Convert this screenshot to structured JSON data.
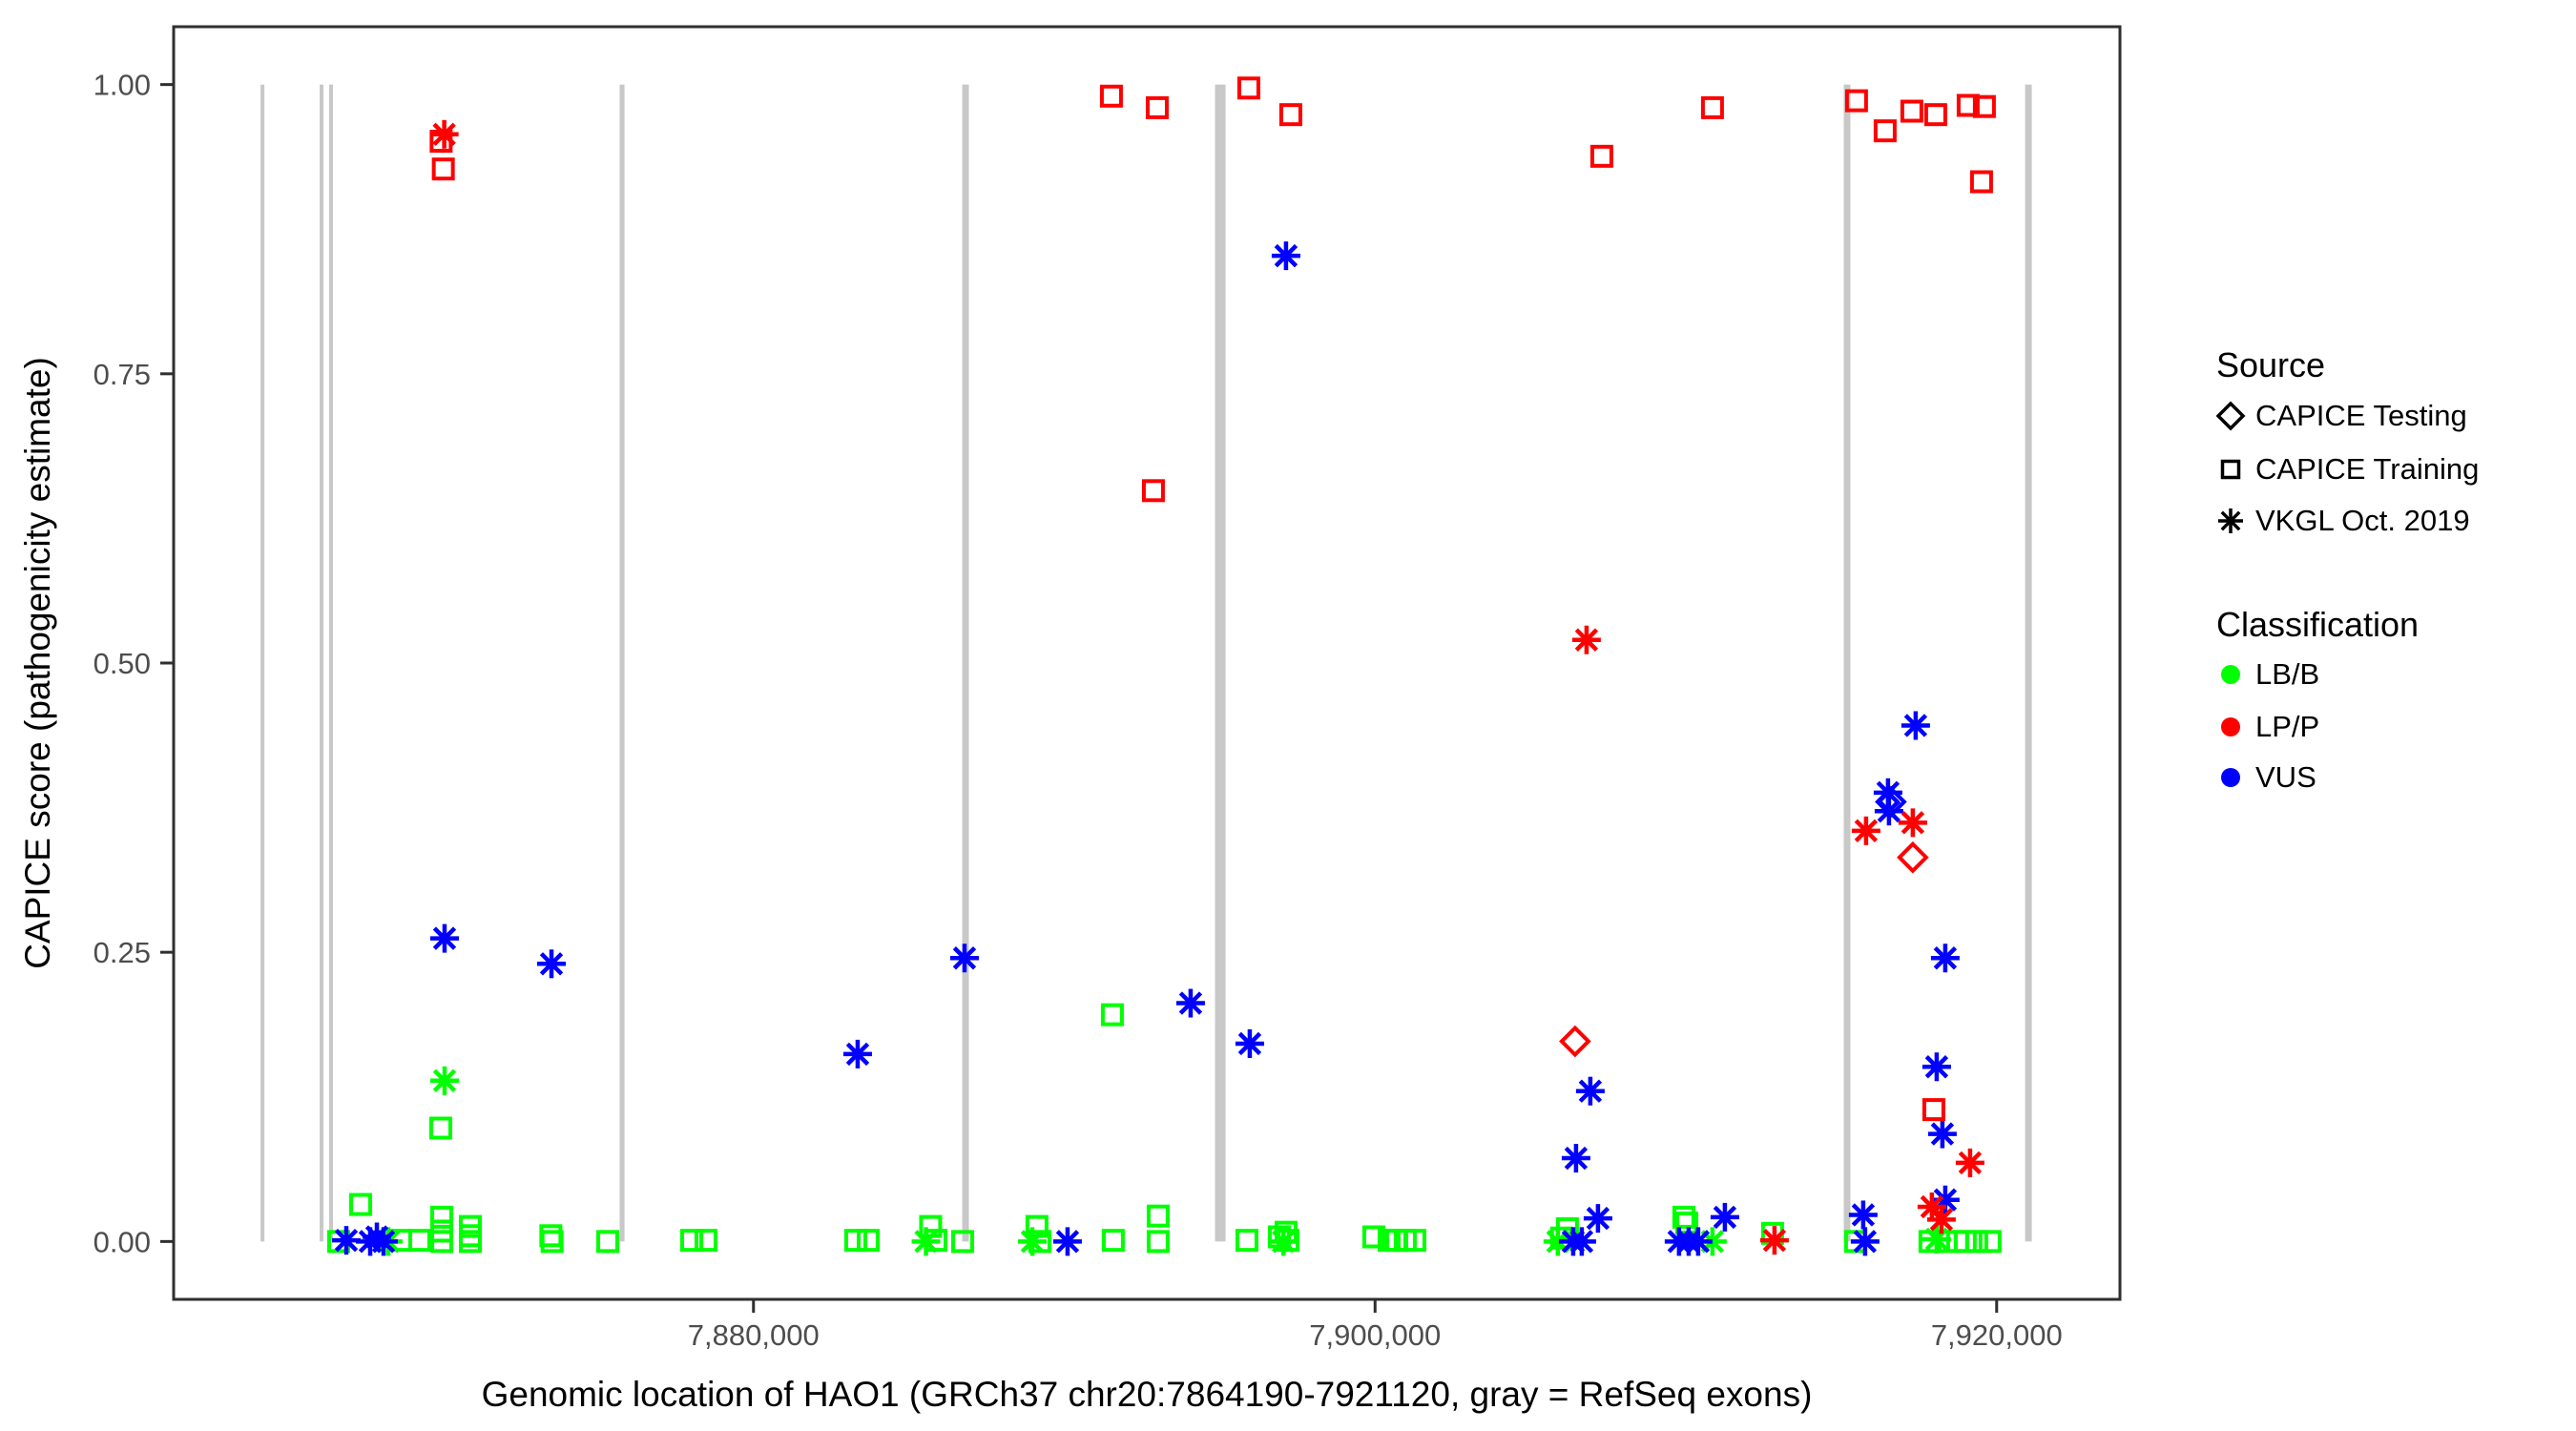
{
  "figure": {
    "x_axis": {
      "title": "Genomic location of HAO1 (GRCh37 chr20:7864190-7921120, gray = RefSeq exons)",
      "tick_labels": [
        "7,880,000",
        "7,900,000",
        "7,920,000"
      ],
      "tick_values": [
        7880000,
        7900000,
        7920000
      ]
    },
    "y_axis": {
      "title": "CAPICE score (pathogenicity estimate)",
      "tick_labels": [
        "0.00",
        "0.25",
        "0.50",
        "0.75",
        "1.00"
      ],
      "tick_values": [
        0,
        0.25,
        0.5,
        0.75,
        1.0
      ]
    },
    "legend": {
      "source_title": "Source",
      "source_items": [
        {
          "label": "CAPICE Testing",
          "marker": "diamond"
        },
        {
          "label": "CAPICE Training",
          "marker": "square"
        },
        {
          "label": "VKGL Oct. 2019",
          "marker": "asterisk"
        }
      ],
      "classification_title": "Classification",
      "classification_items": [
        {
          "label": "LB/B",
          "color": "#00FF00"
        },
        {
          "label": "LP/P",
          "color": "#FF0000"
        },
        {
          "label": "VUS",
          "color": "#0000FF"
        }
      ]
    }
  },
  "chart_data": {
    "type": "scatter",
    "xlabel": "Genomic location of HAO1 (GRCh37 chr20:7864190-7921120, gray = RefSeq exons)",
    "ylabel": "CAPICE score (pathogenicity estimate)",
    "x_domain": [
      7861343,
      7923967
    ],
    "y_domain": [
      -0.05,
      1.05
    ],
    "grid": false,
    "legend_position": "right",
    "class_colors": {
      "LB/B": "#00FF00",
      "LP/P": "#FF0000",
      "VUS": "#0000FF"
    },
    "source_markers": {
      "CAPICE Testing": "diamond",
      "CAPICE Training": "square",
      "VKGL Oct. 2019": "asterisk"
    },
    "style": {
      "exon_color": "#C8C8C8",
      "frame_color": "#2F2F2F",
      "tick_text_color": "#4D4D4D",
      "background": "#FFFFFF"
    },
    "point_codes": {
      "sources": {
        "T": "CAPICE Training",
        "X": "CAPICE Testing",
        "V": "VKGL Oct. 2019"
      },
      "classes": {
        "B": "LB/B",
        "P": "LP/P",
        "U": "VUS"
      }
    },
    "exons": [
      [
        7864140,
        7864263
      ],
      [
        7866040,
        7866165
      ],
      [
        7866347,
        7866470
      ],
      [
        7875695,
        7875850
      ],
      [
        7886715,
        7886930
      ],
      [
        7894850,
        7895190
      ],
      [
        7915080,
        7915295
      ],
      [
        7920915,
        7921130
      ]
    ],
    "points": [
      [
        7866654,
        0.0,
        "T",
        "B"
      ],
      [
        7866899,
        0.001,
        "V",
        "U"
      ],
      [
        7867360,
        0.032,
        "T",
        "B"
      ],
      [
        7867667,
        0.0,
        "V",
        "U"
      ],
      [
        7867882,
        0.004,
        "V",
        "U"
      ],
      [
        7868097,
        0.0,
        "V",
        "U"
      ],
      [
        7868250,
        0.0,
        "V",
        "B"
      ],
      [
        7868649,
        0.001,
        "T",
        "B"
      ],
      [
        7869263,
        0.001,
        "T",
        "B"
      ],
      [
        7869938,
        0.098,
        "T",
        "B"
      ],
      [
        7869950,
        0.951,
        "T",
        "P"
      ],
      [
        7869969,
        0.021,
        "T",
        "B"
      ],
      [
        7869969,
        0.009,
        "T",
        "B"
      ],
      [
        7869969,
        0.0,
        "T",
        "B"
      ],
      [
        7870020,
        0.927,
        "T",
        "P"
      ],
      [
        7870050,
        0.957,
        "V",
        "P"
      ],
      [
        7870061,
        0.139,
        "V",
        "B"
      ],
      [
        7870060,
        0.262,
        "V",
        "U"
      ],
      [
        7870890,
        0.013,
        "T",
        "B"
      ],
      [
        7870890,
        0.005,
        "T",
        "B"
      ],
      [
        7870890,
        0.0,
        "T",
        "B"
      ],
      [
        7873480,
        0.005,
        "T",
        "B"
      ],
      [
        7873520,
        0.0,
        "T",
        "B"
      ],
      [
        7873500,
        0.24,
        "V",
        "U"
      ],
      [
        7875311,
        0.0,
        "T",
        "B"
      ],
      [
        7878012,
        0.001,
        "T",
        "B"
      ],
      [
        7878472,
        0.001,
        "T",
        "B"
      ],
      [
        7883291,
        0.001,
        "T",
        "B"
      ],
      [
        7883690,
        0.001,
        "T",
        "B"
      ],
      [
        7883352,
        0.162,
        "V",
        "U"
      ],
      [
        7885550,
        0.0,
        "V",
        "B"
      ],
      [
        7885700,
        0.013,
        "T",
        "B"
      ],
      [
        7885870,
        0.001,
        "T",
        "B"
      ],
      [
        7886729,
        0.0,
        "T",
        "B"
      ],
      [
        7886790,
        0.245,
        "V",
        "U"
      ],
      [
        7888970,
        0.0,
        "V",
        "B"
      ],
      [
        7889120,
        0.013,
        "T",
        "B"
      ],
      [
        7889215,
        0.0,
        "T",
        "B"
      ],
      [
        7890105,
        0.0,
        "V",
        "U"
      ],
      [
        7891517,
        0.99,
        "T",
        "P"
      ],
      [
        7891548,
        0.196,
        "T",
        "B"
      ],
      [
        7891578,
        0.001,
        "T",
        "B"
      ],
      [
        7892868,
        0.649,
        "T",
        "P"
      ],
      [
        7892991,
        0.98,
        "T",
        "P"
      ],
      [
        7893021,
        0.022,
        "T",
        "B"
      ],
      [
        7893021,
        0.0,
        "T",
        "B"
      ],
      [
        7894065,
        0.206,
        "V",
        "U"
      ],
      [
        7895876,
        0.001,
        "T",
        "B"
      ],
      [
        7895937,
        0.997,
        "T",
        "P"
      ],
      [
        7895968,
        0.171,
        "V",
        "U"
      ],
      [
        7896920,
        0.004,
        "T",
        "B"
      ],
      [
        7897050,
        0.0,
        "V",
        "B"
      ],
      [
        7897135,
        0.008,
        "T",
        "B"
      ],
      [
        7897200,
        0.001,
        "T",
        "B"
      ],
      [
        7897134,
        0.852,
        "V",
        "U"
      ],
      [
        7897288,
        0.974,
        "T",
        "P"
      ],
      [
        7899959,
        0.004,
        "T",
        "B"
      ],
      [
        7900450,
        0.001,
        "T",
        "B"
      ],
      [
        7900695,
        0.001,
        "T",
        "B"
      ],
      [
        7900972,
        0.001,
        "T",
        "B"
      ],
      [
        7901279,
        0.001,
        "T",
        "B"
      ],
      [
        7905880,
        0.0,
        "V",
        "B"
      ],
      [
        7906000,
        0.003,
        "T",
        "B"
      ],
      [
        7906190,
        0.011,
        "T",
        "B"
      ],
      [
        7906375,
        0.0,
        "V",
        "U"
      ],
      [
        7906435,
        0.173,
        "X",
        "P"
      ],
      [
        7906466,
        0.072,
        "V",
        "U"
      ],
      [
        7906650,
        0.0,
        "V",
        "U"
      ],
      [
        7906804,
        0.52,
        "V",
        "P"
      ],
      [
        7906926,
        0.13,
        "V",
        "U"
      ],
      [
        7907172,
        0.02,
        "V",
        "U"
      ],
      [
        7907295,
        0.938,
        "T",
        "P"
      ],
      [
        7909780,
        0.0,
        "V",
        "U"
      ],
      [
        7909935,
        0.021,
        "T",
        "B"
      ],
      [
        7910030,
        0.016,
        "T",
        "B"
      ],
      [
        7910090,
        0.0,
        "V",
        "U"
      ],
      [
        7910395,
        0.0,
        "V",
        "U"
      ],
      [
        7910856,
        0.98,
        "T",
        "P"
      ],
      [
        7910856,
        0.0,
        "V",
        "B"
      ],
      [
        7911255,
        0.021,
        "V",
        "U"
      ],
      [
        7912790,
        0.007,
        "T",
        "B"
      ],
      [
        7912852,
        0.001,
        "V",
        "P"
      ],
      [
        7915460,
        0.0,
        "T",
        "B"
      ],
      [
        7915491,
        0.986,
        "T",
        "P"
      ],
      [
        7915706,
        0.023,
        "V",
        "U"
      ],
      [
        7915767,
        0.0,
        "V",
        "U"
      ],
      [
        7915798,
        0.355,
        "V",
        "P"
      ],
      [
        7916412,
        0.96,
        "T",
        "P"
      ],
      [
        7916504,
        0.388,
        "V",
        "U"
      ],
      [
        7916535,
        0.372,
        "V",
        "U"
      ],
      [
        7916596,
        0.38,
        "X",
        "U"
      ],
      [
        7917271,
        0.977,
        "T",
        "P"
      ],
      [
        7917302,
        0.362,
        "V",
        "P"
      ],
      [
        7917302,
        0.332,
        "X",
        "P"
      ],
      [
        7917394,
        0.446,
        "V",
        "U"
      ],
      [
        7917854,
        0.0,
        "T",
        "B"
      ],
      [
        7917916,
        0.03,
        "V",
        "P"
      ],
      [
        7917978,
        0.114,
        "T",
        "P"
      ],
      [
        7918039,
        0.974,
        "T",
        "P"
      ],
      [
        7918070,
        0.151,
        "V",
        "U"
      ],
      [
        7918070,
        0.002,
        "V",
        "B"
      ],
      [
        7918223,
        0.019,
        "V",
        "P"
      ],
      [
        7918254,
        0.093,
        "V",
        "U"
      ],
      [
        7918346,
        0.245,
        "V",
        "U"
      ],
      [
        7918346,
        0.036,
        "V",
        "U"
      ],
      [
        7918376,
        0.0,
        "T",
        "B"
      ],
      [
        7918744,
        0.0,
        "T",
        "B"
      ],
      [
        7918990,
        0.0,
        "T",
        "B"
      ],
      [
        7919083,
        0.982,
        "T",
        "P"
      ],
      [
        7919145,
        0.068,
        "V",
        "P"
      ],
      [
        7919358,
        0.0,
        "T",
        "B"
      ],
      [
        7919513,
        0.916,
        "T",
        "P"
      ],
      [
        7919605,
        0.981,
        "T",
        "P"
      ],
      [
        7919788,
        0.0,
        "T",
        "B"
      ]
    ]
  }
}
